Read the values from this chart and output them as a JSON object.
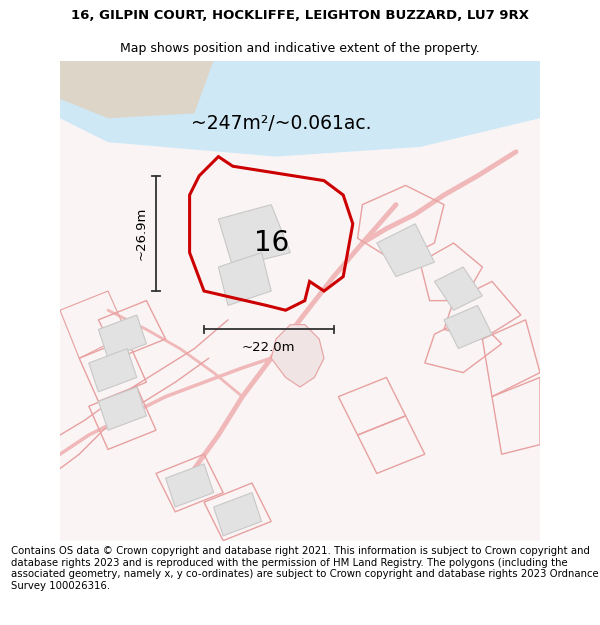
{
  "title_line1": "16, GILPIN COURT, HOCKLIFFE, LEIGHTON BUZZARD, LU7 9RX",
  "title_line2": "Map shows position and indicative extent of the property.",
  "area_text": "~247m²/~0.061ac.",
  "number_label": "16",
  "dim_vertical": "~26.9m",
  "dim_horizontal": "~22.0m",
  "footer_text": "Contains OS data © Crown copyright and database right 2021. This information is subject to Crown copyright and database rights 2023 and is reproduced with the permission of HM Land Registry. The polygons (including the associated geometry, namely x, y co-ordinates) are subject to Crown copyright and database rights 2023 Ordnance Survey 100026316.",
  "bg_color": "#ffffff",
  "map_bg": "#faf4f4",
  "road_color": "#f0b8b8",
  "road_outline_color": "#e8a0a0",
  "highlight_color": "#cc0000",
  "building_fill": "#e2e2e2",
  "building_edge": "#c8c8c8",
  "water_color": "#cfe8f5",
  "land_color": "#ddd5c8",
  "title_fontsize": 9.5,
  "subtitle_fontsize": 9.0,
  "footer_fontsize": 7.3,
  "area_fontsize": 13.5,
  "num_fontsize": 20,
  "dim_fontsize": 9.5
}
